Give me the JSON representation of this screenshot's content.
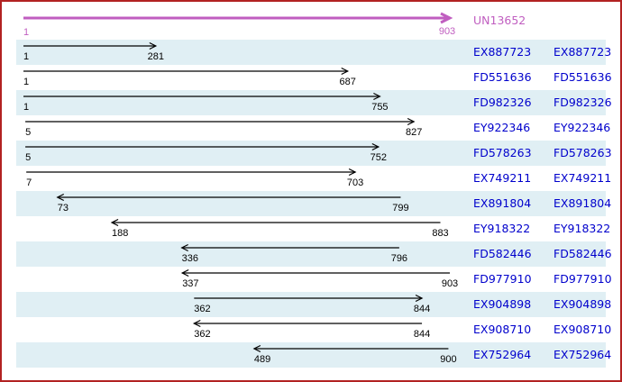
{
  "colors": {
    "frame_border": "#b22222",
    "row_band": "#e0eff4",
    "accession_link": "#0000cc",
    "reference": "#c05ec0",
    "alignment_arrow": "#000000"
  },
  "chart_data": {
    "type": "range-arrows",
    "title": "UN13652",
    "axis": {
      "min": 1,
      "max": 903
    },
    "reference": {
      "name": "UN13652",
      "start": 1,
      "end": 903,
      "direction": "right"
    },
    "alignments": [
      {
        "name": "EX887723",
        "start": 1,
        "end": 281,
        "direction": "right"
      },
      {
        "name": "FD551636",
        "start": 1,
        "end": 687,
        "direction": "right"
      },
      {
        "name": "FD982326",
        "start": 1,
        "end": 755,
        "direction": "right"
      },
      {
        "name": "EY922346",
        "start": 5,
        "end": 827,
        "direction": "right"
      },
      {
        "name": "FD578263",
        "start": 5,
        "end": 752,
        "direction": "right"
      },
      {
        "name": "EX749211",
        "start": 7,
        "end": 703,
        "direction": "right"
      },
      {
        "name": "EX891804",
        "start": 73,
        "end": 799,
        "direction": "left"
      },
      {
        "name": "EY918322",
        "start": 188,
        "end": 883,
        "direction": "left"
      },
      {
        "name": "FD582446",
        "start": 336,
        "end": 796,
        "direction": "left"
      },
      {
        "name": "FD977910",
        "start": 337,
        "end": 903,
        "direction": "left"
      },
      {
        "name": "EX904898",
        "start": 362,
        "end": 844,
        "direction": "right"
      },
      {
        "name": "EX908710",
        "start": 362,
        "end": 844,
        "direction": "left"
      },
      {
        "name": "EX752964",
        "start": 489,
        "end": 900,
        "direction": "left"
      }
    ]
  }
}
